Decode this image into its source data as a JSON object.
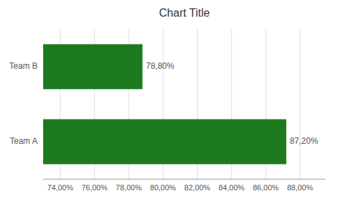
{
  "chart_data": {
    "type": "bar",
    "orientation": "horizontal",
    "title": "Chart Title",
    "categories": [
      "Team A",
      "Team B"
    ],
    "values": [
      0.872,
      0.788
    ],
    "value_labels": [
      "87,20%",
      "78,80%"
    ],
    "data_labels": true,
    "color": "#1e7a1e",
    "xlim": [
      0.73,
      0.895
    ],
    "xticks": [
      {
        "value": 0.74,
        "label": "74,00%"
      },
      {
        "value": 0.76,
        "label": "76,00%"
      },
      {
        "value": 0.78,
        "label": "78,00%"
      },
      {
        "value": 0.8,
        "label": "80,00%"
      },
      {
        "value": 0.82,
        "label": "82,00%"
      },
      {
        "value": 0.84,
        "label": "84,00%"
      },
      {
        "value": 0.86,
        "label": "86,00%"
      },
      {
        "value": 0.88,
        "label": "88,00%"
      }
    ],
    "grid": true
  }
}
